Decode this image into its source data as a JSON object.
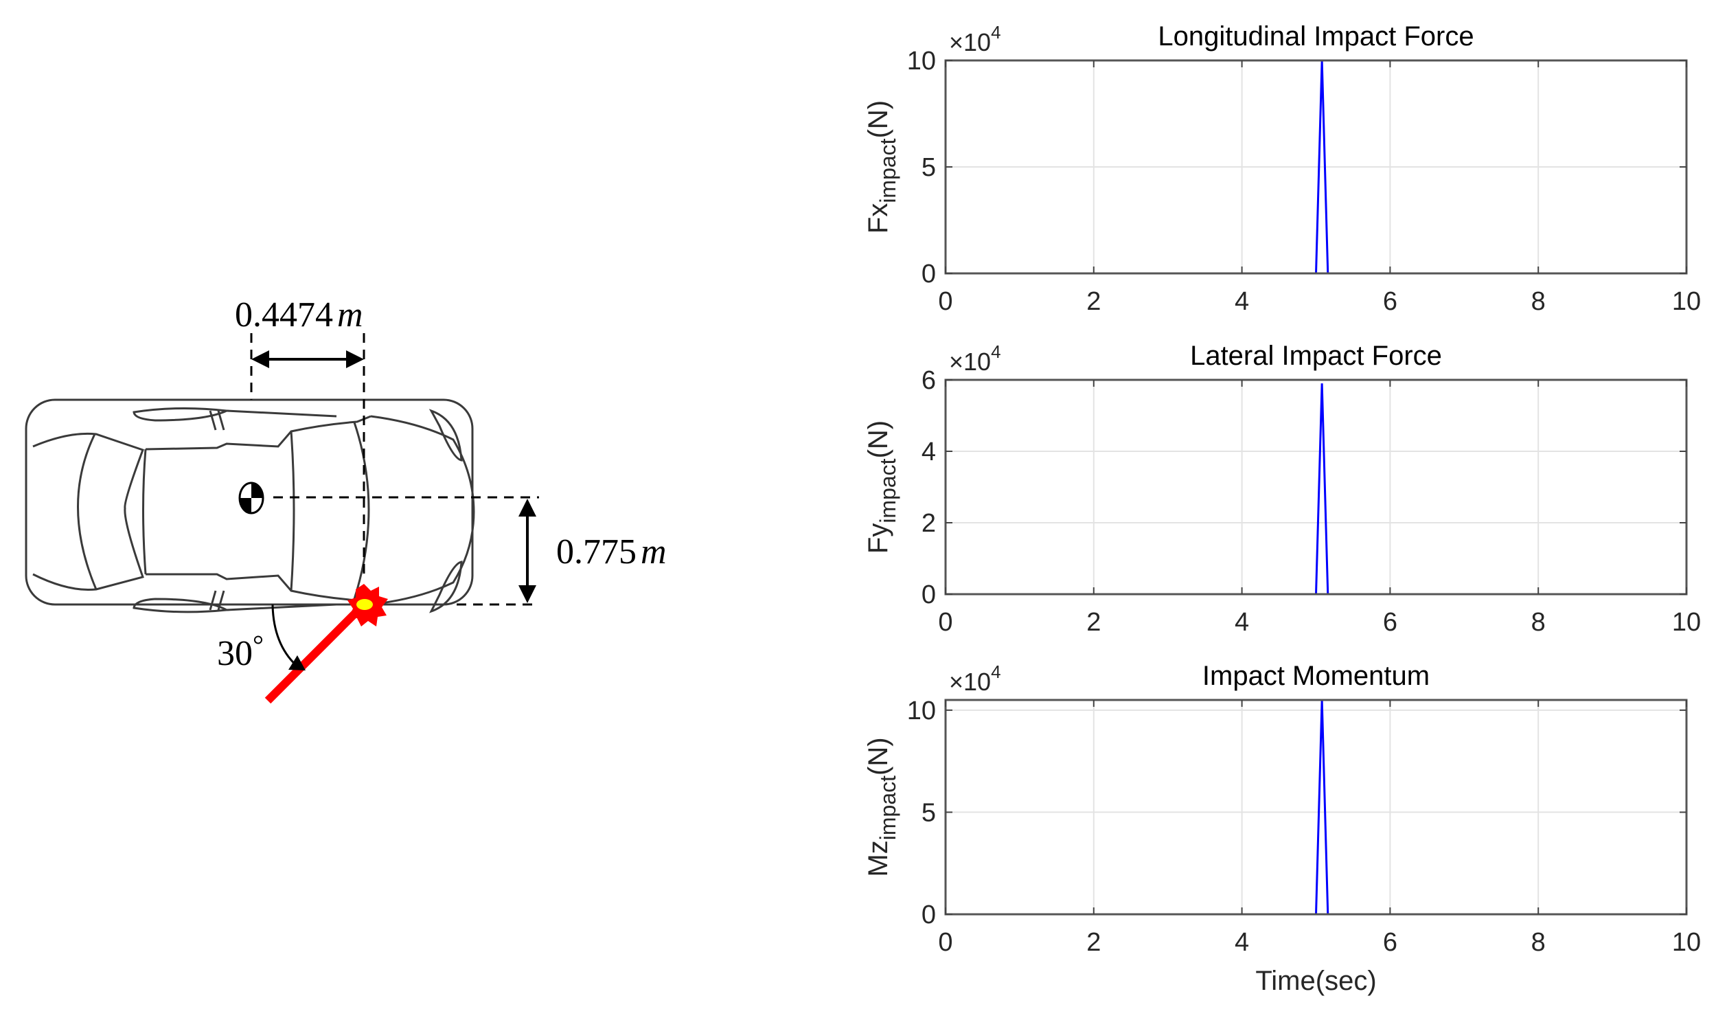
{
  "diagram": {
    "dim_longitudinal": {
      "value": "0.4474",
      "unit": "m"
    },
    "dim_lateral": {
      "value": "0.775",
      "unit": "m"
    },
    "impact_angle": {
      "value": "30",
      "unit": "°"
    },
    "colors": {
      "impact_line": "#ff0000",
      "impact_core": "#ffff00",
      "car_outline": "#3a3a3a",
      "dimension": "#000000"
    }
  },
  "chart_data": [
    {
      "type": "line",
      "title": "Longitudinal Impact Force",
      "xlabel": "",
      "ylabel": "Fx",
      "ylabel_sub": "impact",
      "ylabel_unit": "(N)",
      "exponent": "×10",
      "exponent_power": "4",
      "xlim": [
        0,
        10
      ],
      "ylim": [
        0,
        10
      ],
      "xticks": [
        0,
        2,
        4,
        6,
        8,
        10
      ],
      "yticks": [
        0,
        5,
        10
      ],
      "grid": true,
      "series": [
        {
          "name": "Fx_impact",
          "color": "#0000ff",
          "x": [
            0,
            5.0,
            5.08,
            5.16,
            10
          ],
          "y": [
            0,
            0,
            10,
            0,
            0
          ]
        }
      ]
    },
    {
      "type": "line",
      "title": "Lateral Impact Force",
      "xlabel": "",
      "ylabel": "Fy",
      "ylabel_sub": "impact",
      "ylabel_unit": "(N)",
      "exponent": "×10",
      "exponent_power": "4",
      "xlim": [
        0,
        10
      ],
      "ylim": [
        0,
        6
      ],
      "xticks": [
        0,
        2,
        4,
        6,
        8,
        10
      ],
      "yticks": [
        0,
        2,
        4,
        6
      ],
      "grid": true,
      "series": [
        {
          "name": "Fy_impact",
          "color": "#0000ff",
          "x": [
            0,
            5.0,
            5.08,
            5.16,
            10
          ],
          "y": [
            0,
            0,
            5.9,
            0,
            0
          ]
        }
      ]
    },
    {
      "type": "line",
      "title": "Impact Momentum",
      "xlabel": "Time(sec)",
      "ylabel": "Mz",
      "ylabel_sub": "impact",
      "ylabel_unit": "(N)",
      "exponent": "×10",
      "exponent_power": "4",
      "xlim": [
        0,
        10
      ],
      "ylim": [
        0,
        10.5
      ],
      "xticks": [
        0,
        2,
        4,
        6,
        8,
        10
      ],
      "yticks": [
        0,
        5,
        10
      ],
      "grid": true,
      "series": [
        {
          "name": "Mz_impact",
          "color": "#0000ff",
          "x": [
            0,
            5.0,
            5.08,
            5.16,
            10
          ],
          "y": [
            0,
            0,
            10.5,
            0,
            0
          ]
        }
      ]
    }
  ]
}
